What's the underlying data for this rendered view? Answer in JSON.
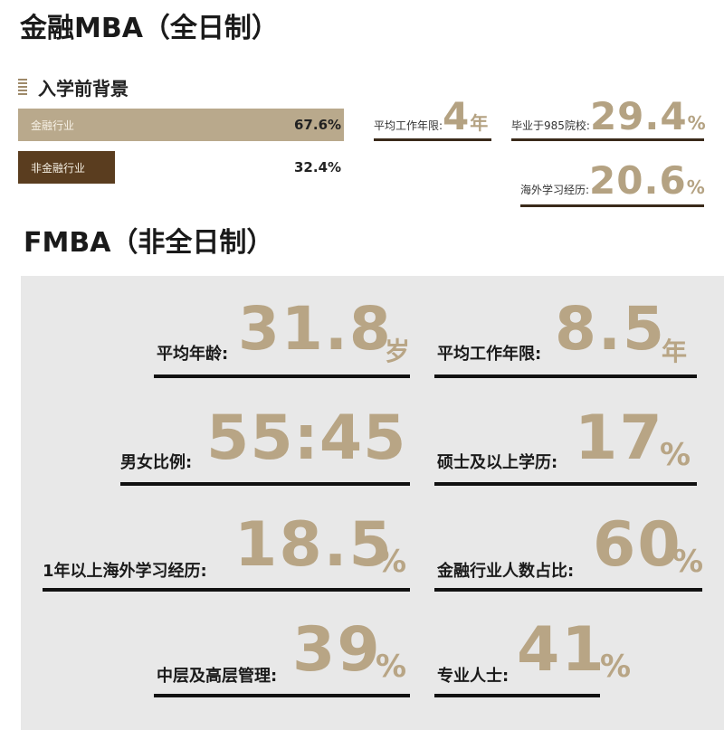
{
  "titles": {
    "mba": "金融MBA（全日制）",
    "fmba": "FMBA（非全日制）"
  },
  "section_heading": "入学前背景",
  "chart_data": {
    "type": "bar",
    "title": "入学前背景",
    "categories": [
      "金融行业",
      "非金融行业"
    ],
    "values": [
      67.6,
      32.4
    ],
    "value_labels": [
      "67.6%",
      "32.4%"
    ],
    "ylim": [
      0,
      100
    ],
    "colors": [
      "#b9a98c",
      "#5a3d1f"
    ]
  },
  "mba_stats": {
    "work_years": {
      "label": "平均工作年限:",
      "value": "4",
      "unit": "年"
    },
    "grad_985": {
      "label": "毕业于985院校:",
      "value": "29.4",
      "unit": "%"
    },
    "overseas": {
      "label": "海外学习经历:",
      "value": "20.6",
      "unit": "%"
    }
  },
  "fmba_stats": [
    {
      "label": "平均年龄:",
      "value": "31.8",
      "unit": "岁"
    },
    {
      "label": "平均工作年限:",
      "value": "8.5",
      "unit": "年"
    },
    {
      "label": "男女比例:",
      "value": "55:45",
      "unit": ""
    },
    {
      "label": "硕士及以上学历:",
      "value": "17",
      "unit": "%"
    },
    {
      "label": "1年以上海外学习经历:",
      "value": "18.5",
      "unit": "%"
    },
    {
      "label": "金融行业人数占比:",
      "value": "60",
      "unit": "%"
    },
    {
      "label": "中层及高层管理:",
      "value": "39",
      "unit": "%"
    },
    {
      "label": "专业人士:",
      "value": "41",
      "unit": "%"
    }
  ],
  "colors": {
    "gold": "#b8a585",
    "dark_brown": "#5a3d1f",
    "panel_bg": "#e8e8e8"
  }
}
